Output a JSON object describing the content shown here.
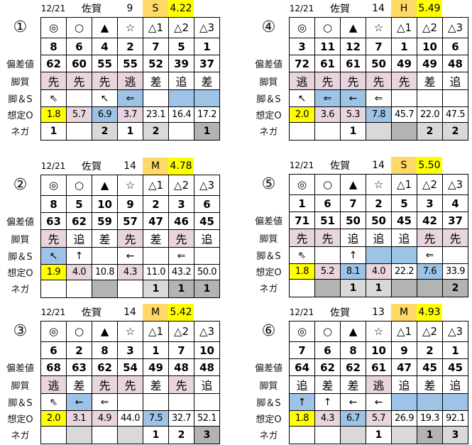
{
  "colors": {
    "y": "#ffff00",
    "p": "#e9d5de",
    "b": "#9dc3e6",
    "l": "#d9d9d9",
    "d": "#b3b3b3",
    "o": "#ffd966",
    "": "#ffffff"
  },
  "marks": [
    "◎",
    "○",
    "▲",
    "☆",
    "△1",
    "△2",
    "△3"
  ],
  "row_labels": {
    "score": "偏差値",
    "style": "脚質",
    "arrow": "脚＆S",
    "odds": "想定O",
    "nega": "ネガ"
  },
  "races": [
    {
      "no": "①",
      "date": "12/21",
      "venue": "佐賀",
      "count": "9",
      "pace": "S",
      "pace_value": "4.22",
      "horses": [
        "8",
        "6",
        "4",
        "2",
        "7",
        "5",
        "1"
      ],
      "scores": [
        "62",
        "60",
        "55",
        "55",
        "52",
        "39",
        "37"
      ],
      "styles": [
        "先",
        "先",
        "先",
        "逃",
        "差",
        "追",
        "差"
      ],
      "styles_bg": [
        "p",
        "p",
        "p",
        "p",
        "",
        "",
        ""
      ],
      "arrows": [
        "⇖",
        "",
        "↖",
        "⇐",
        "",
        "",
        ""
      ],
      "arrows_bg": [
        "",
        "",
        "",
        "b",
        "",
        "b",
        "b"
      ],
      "odds": [
        "1.8",
        "5.7",
        "6.9",
        "3.7",
        "23.1",
        "16.4",
        "17.2"
      ],
      "odds_bg": [
        "y",
        "p",
        "b",
        "p",
        "",
        "",
        ""
      ],
      "nega": [
        "1",
        "",
        "2",
        "1",
        "2",
        "",
        "1"
      ],
      "nega_bg": [
        "",
        "",
        "l",
        "",
        "l",
        "",
        "d"
      ]
    },
    {
      "no": "②",
      "date": "12/21",
      "venue": "佐賀",
      "count": "14",
      "pace": "M",
      "pace_value": "4.78",
      "horses": [
        "8",
        "5",
        "10",
        "9",
        "2",
        "3",
        "6"
      ],
      "scores": [
        "63",
        "62",
        "59",
        "57",
        "47",
        "46",
        "45"
      ],
      "styles": [
        "先",
        "追",
        "差",
        "先",
        "差",
        "先",
        "追"
      ],
      "styles_bg": [
        "p",
        "",
        "",
        "p",
        "",
        "p",
        ""
      ],
      "arrows": [
        "↖",
        "↑",
        "",
        "←",
        "",
        "⇐",
        ""
      ],
      "arrows_bg": [
        "b",
        "",
        "",
        "",
        "",
        "",
        ""
      ],
      "odds": [
        "1.9",
        "4.0",
        "10.8",
        "4.3",
        "11.0",
        "43.2",
        "50.0"
      ],
      "odds_bg": [
        "y",
        "p",
        "",
        "p",
        "",
        "",
        ""
      ],
      "nega": [
        "",
        "",
        "",
        "",
        "1",
        "1",
        "1"
      ],
      "nega_bg": [
        "",
        "",
        "d",
        "",
        "l",
        "d",
        "d"
      ]
    },
    {
      "no": "③",
      "date": "12/21",
      "venue": "佐賀",
      "count": "14",
      "pace": "M",
      "pace_value": "5.42",
      "horses": [
        "6",
        "2",
        "8",
        "3",
        "1",
        "7",
        "10"
      ],
      "scores": [
        "68",
        "63",
        "62",
        "54",
        "49",
        "48",
        "48"
      ],
      "styles": [
        "逃",
        "差",
        "先",
        "先",
        "差",
        "先",
        "追"
      ],
      "styles_bg": [
        "p",
        "",
        "p",
        "p",
        "",
        "p",
        ""
      ],
      "arrows": [
        "⇖",
        "←",
        "⇐",
        "",
        "",
        "",
        ""
      ],
      "arrows_bg": [
        "",
        "b",
        "",
        "",
        "",
        "",
        ""
      ],
      "odds": [
        "2.0",
        "3.1",
        "4.9",
        "44.0",
        "7.5",
        "32.7",
        "52.1"
      ],
      "odds_bg": [
        "y",
        "p",
        "p",
        "",
        "b",
        "",
        ""
      ],
      "nega": [
        "",
        "",
        "",
        "",
        "1",
        "2",
        "3"
      ],
      "nega_bg": [
        "",
        "l",
        "",
        "l",
        "",
        "",
        "d"
      ]
    },
    {
      "no": "④",
      "date": "12/21",
      "venue": "佐賀",
      "count": "14",
      "pace": "H",
      "pace_value": "5.49",
      "horses": [
        "3",
        "11",
        "12",
        "7",
        "1",
        "10",
        "6"
      ],
      "scores": [
        "72",
        "61",
        "61",
        "50",
        "49",
        "49",
        "48"
      ],
      "styles": [
        "逃",
        "先",
        "先",
        "先",
        "先",
        "差",
        "追"
      ],
      "styles_bg": [
        "p",
        "p",
        "p",
        "p",
        "p",
        "",
        ""
      ],
      "arrows": [
        "↖",
        "⇐",
        "←",
        "⇐",
        "",
        "",
        ""
      ],
      "arrows_bg": [
        "",
        "b",
        "b",
        "",
        "",
        "",
        ""
      ],
      "odds": [
        "2.0",
        "3.6",
        "5.3",
        "7.8",
        "45.7",
        "22.0",
        "47.5"
      ],
      "odds_bg": [
        "y",
        "p",
        "p",
        "b",
        "",
        "",
        ""
      ],
      "nega": [
        "",
        "",
        "1",
        "",
        "",
        "2",
        "2"
      ],
      "nega_bg": [
        "",
        "",
        "",
        "l",
        "d",
        "l",
        "l"
      ]
    },
    {
      "no": "⑤",
      "date": "12/21",
      "venue": "佐賀",
      "count": "14",
      "pace": "S",
      "pace_value": "5.50",
      "horses": [
        "1",
        "6",
        "7",
        "2",
        "5",
        "3",
        "4"
      ],
      "scores": [
        "71",
        "51",
        "50",
        "50",
        "45",
        "42",
        "37"
      ],
      "styles": [
        "先",
        "先",
        "追",
        "追",
        "追",
        "先",
        "先"
      ],
      "styles_bg": [
        "p",
        "p",
        "",
        "",
        "",
        "p",
        "p"
      ],
      "arrows": [
        "⇖",
        "",
        "↑",
        "",
        "",
        "⇐",
        ""
      ],
      "arrows_bg": [
        "",
        "",
        "",
        "b",
        "b",
        "",
        ""
      ],
      "odds": [
        "1.8",
        "5.2",
        "8.1",
        "4.0",
        "22.2",
        "7.6",
        "33.9"
      ],
      "odds_bg": [
        "y",
        "p",
        "b",
        "p",
        "",
        "b",
        ""
      ],
      "nega": [
        "",
        "",
        "1",
        "1",
        "",
        "",
        "2"
      ],
      "nega_bg": [
        "",
        "d",
        "l",
        "l",
        "d",
        "d",
        "d"
      ]
    },
    {
      "no": "⑥",
      "date": "12/21",
      "venue": "佐賀",
      "count": "13",
      "pace": "M",
      "pace_value": "4.93",
      "horses": [
        "7",
        "6",
        "8",
        "10",
        "9",
        "2",
        "1"
      ],
      "scores": [
        "64",
        "62",
        "62",
        "61",
        "47",
        "45",
        "45"
      ],
      "styles": [
        "追",
        "差",
        "差",
        "逃",
        "追",
        "差",
        "追"
      ],
      "styles_bg": [
        "",
        "",
        "",
        "p",
        "",
        "",
        ""
      ],
      "arrows": [
        "↑",
        "↑",
        "←",
        "←",
        "",
        "",
        ""
      ],
      "arrows_bg": [
        "b",
        "",
        "",
        "",
        "b",
        "b",
        "b"
      ],
      "odds": [
        "1.8",
        "4.3",
        "6.7",
        "5.7",
        "26.9",
        "19.3",
        "92.1"
      ],
      "odds_bg": [
        "y",
        "p",
        "b",
        "p",
        "",
        "",
        ""
      ],
      "nega": [
        "",
        "",
        "",
        "1",
        "",
        "1",
        "3"
      ],
      "nega_bg": [
        "",
        "",
        "l",
        "",
        "l",
        "d",
        "l"
      ]
    }
  ]
}
